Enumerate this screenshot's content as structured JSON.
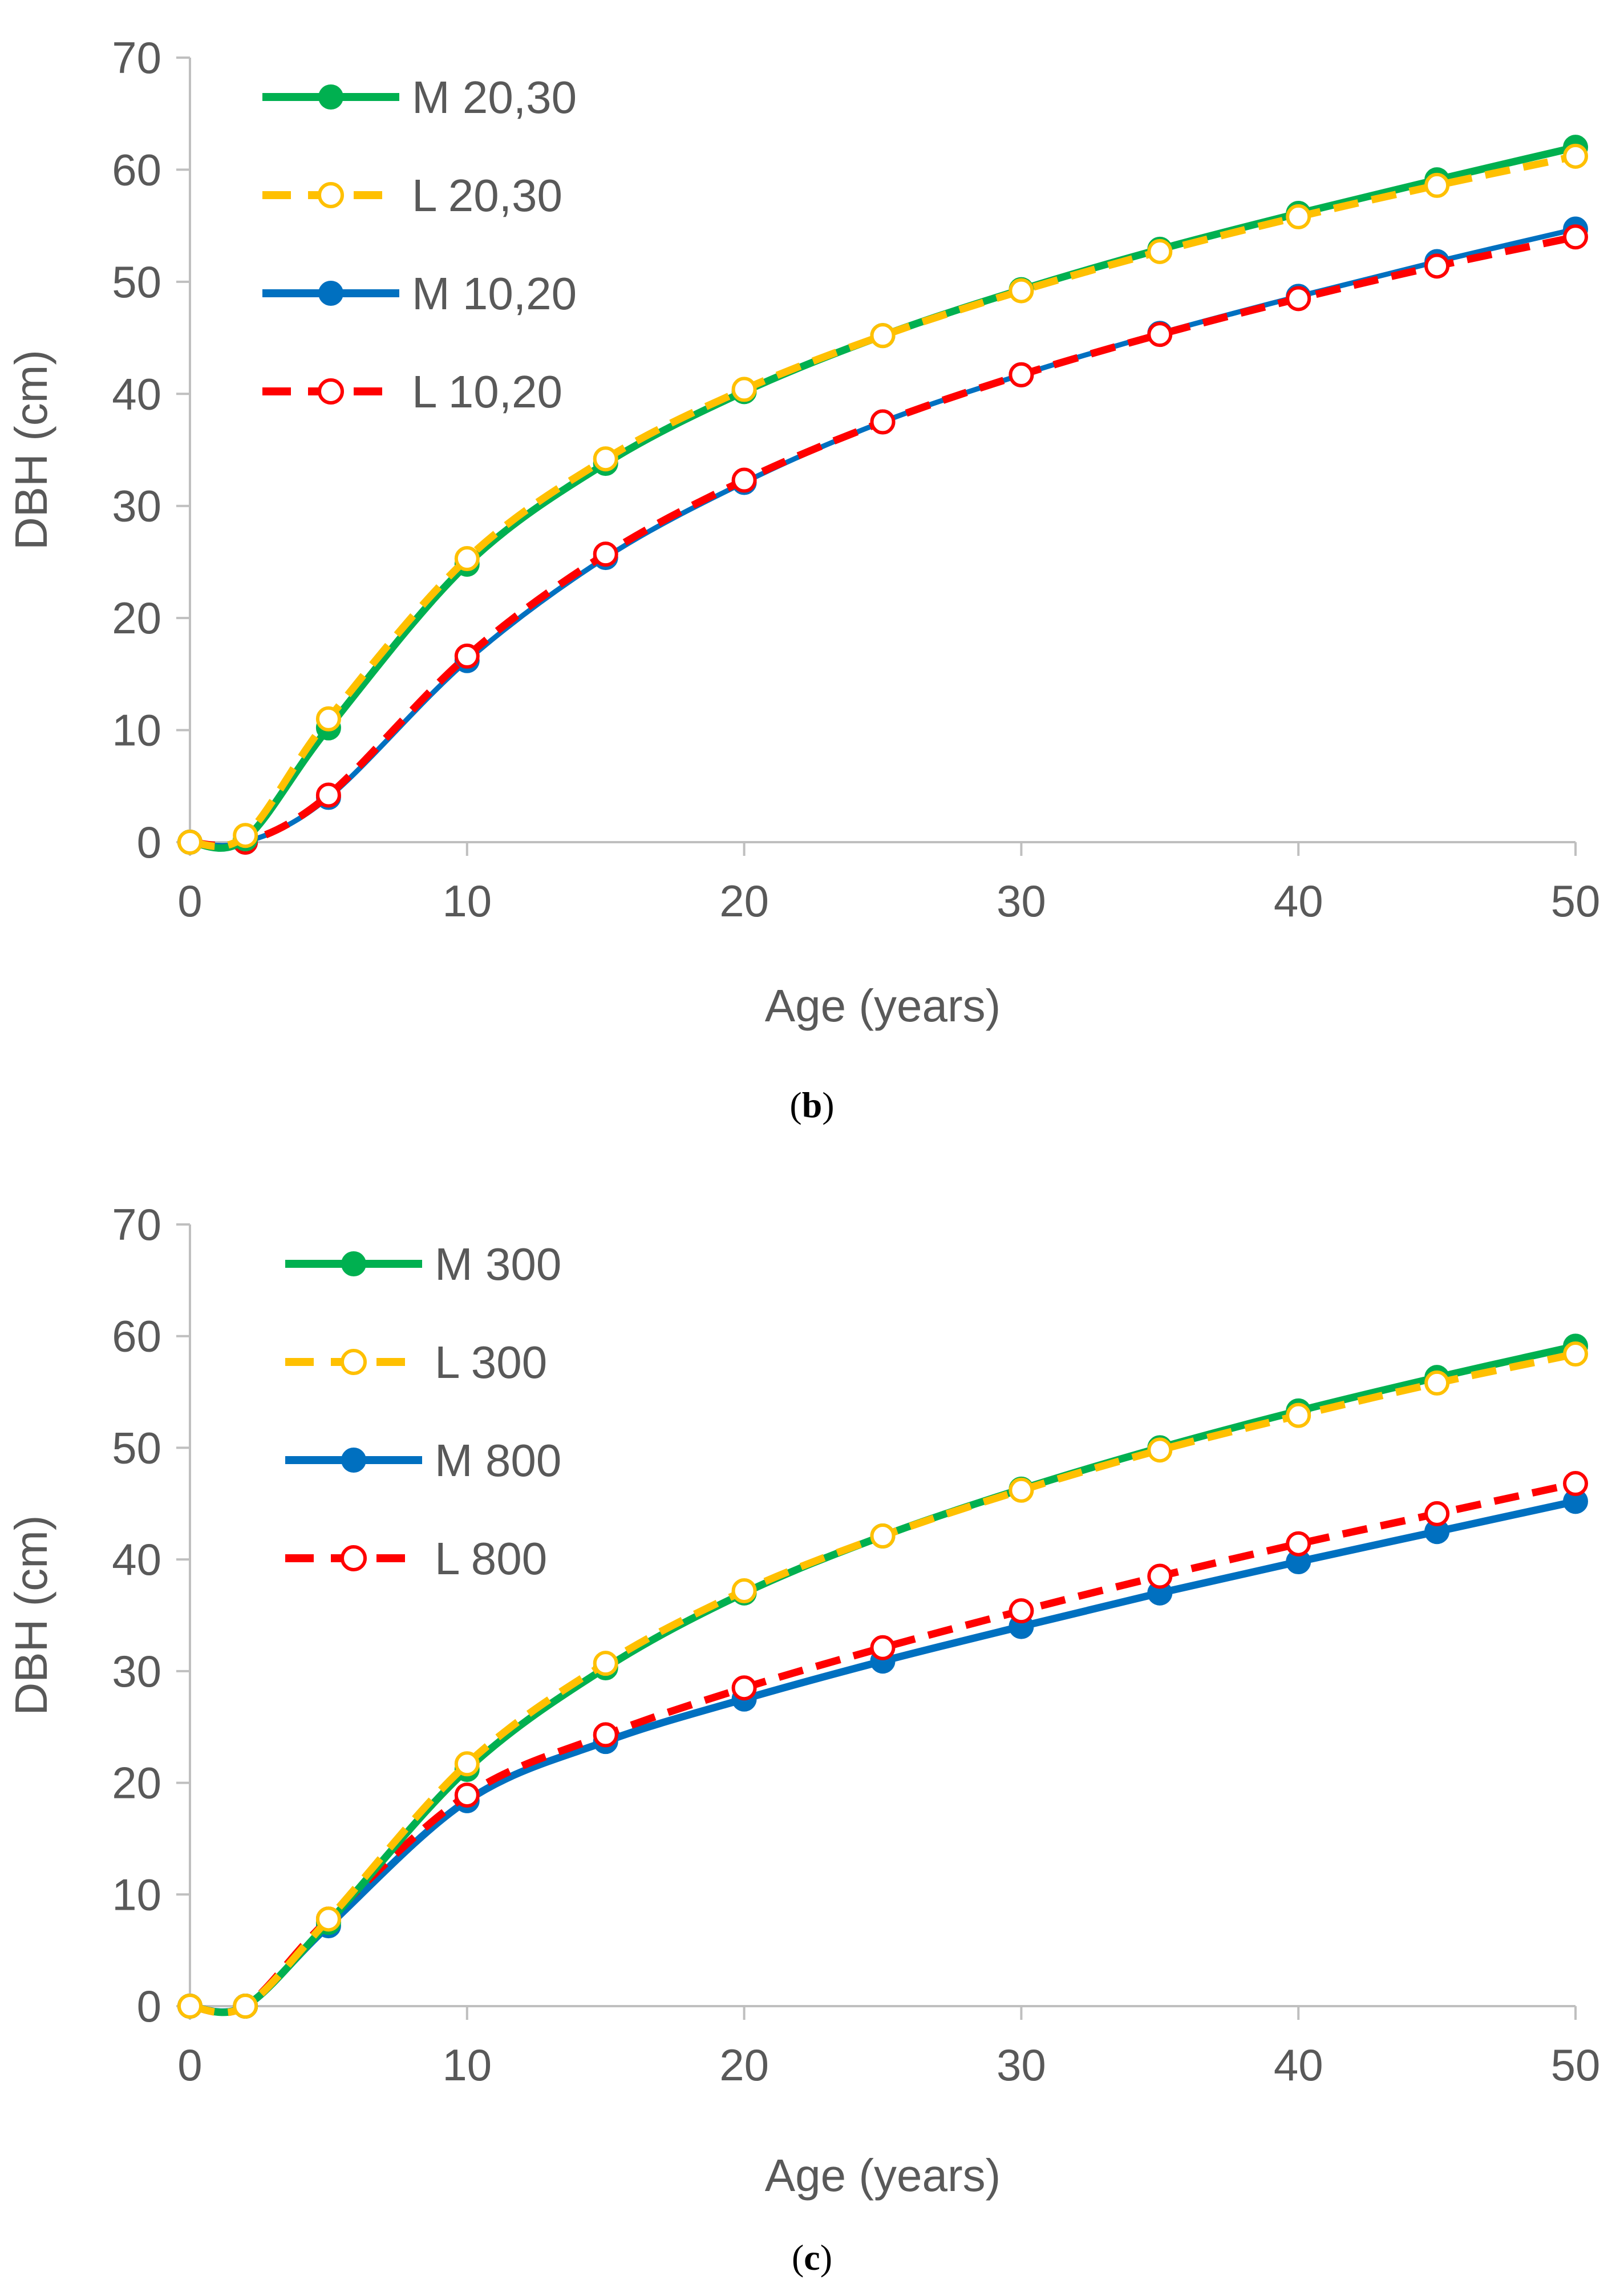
{
  "chart_data": [
    {
      "type": "line",
      "panel": "b",
      "xlabel": "Age (years)",
      "ylabel": "DBH (cm)",
      "xlim": [
        0,
        50
      ],
      "ylim": [
        0,
        70
      ],
      "xticks": [
        0,
        10,
        20,
        30,
        40,
        50
      ],
      "yticks": [
        0,
        10,
        20,
        30,
        40,
        50,
        60,
        70
      ],
      "legend_position": "top-left",
      "grid": false,
      "x": [
        0,
        2,
        5,
        10,
        15,
        20,
        25,
        30,
        35,
        40,
        45,
        50
      ],
      "series": [
        {
          "name": "M 20,30",
          "color": "#00B050",
          "style": "solid",
          "marker": "filled",
          "values": [
            0,
            0.3,
            10.2,
            24.8,
            33.8,
            40.2,
            45.2,
            49.3,
            52.9,
            56.1,
            59.1,
            62.0
          ]
        },
        {
          "name": "L 20,30",
          "color": "#FFC000",
          "style": "dashed",
          "marker": "open",
          "values": [
            0,
            0.6,
            11.0,
            25.3,
            34.2,
            40.4,
            45.2,
            49.2,
            52.7,
            55.8,
            58.6,
            61.2
          ]
        },
        {
          "name": "M 10,20",
          "color": "#0070C0",
          "style": "solid",
          "marker": "filled",
          "values": [
            0,
            0,
            4.0,
            16.2,
            25.4,
            32.1,
            37.5,
            41.7,
            45.4,
            48.7,
            51.8,
            54.7
          ]
        },
        {
          "name": "L 10,20",
          "color": "#FF0000",
          "style": "dashed",
          "marker": "open",
          "values": [
            0,
            0,
            4.2,
            16.6,
            25.7,
            32.3,
            37.5,
            41.7,
            45.3,
            48.5,
            51.4,
            54.0
          ]
        }
      ],
      "caption": "b"
    },
    {
      "type": "line",
      "panel": "c",
      "xlabel": "Age (years)",
      "ylabel": "DBH (cm)",
      "xlim": [
        0,
        50
      ],
      "ylim": [
        0,
        70
      ],
      "xticks": [
        0,
        10,
        20,
        30,
        40,
        50
      ],
      "yticks": [
        0,
        10,
        20,
        30,
        40,
        50,
        60,
        70
      ],
      "legend_position": "top-left",
      "grid": false,
      "x": [
        0,
        2,
        5,
        10,
        15,
        20,
        25,
        30,
        35,
        40,
        45,
        50
      ],
      "series": [
        {
          "name": "M 300",
          "color": "#00B050",
          "style": "solid",
          "marker": "filled",
          "values": [
            0,
            0,
            7.5,
            21.2,
            30.3,
            37.0,
            42.1,
            46.3,
            50.0,
            53.3,
            56.3,
            59.1
          ]
        },
        {
          "name": "L 300",
          "color": "#FFC000",
          "style": "dashed",
          "marker": "open",
          "values": [
            0,
            0,
            7.8,
            21.7,
            30.7,
            37.2,
            42.1,
            46.2,
            49.8,
            52.9,
            55.8,
            58.4
          ]
        },
        {
          "name": "M 800",
          "color": "#0070C0",
          "style": "solid",
          "marker": "filled",
          "values": [
            0,
            0,
            7.2,
            18.4,
            23.7,
            27.5,
            30.9,
            34.0,
            37.0,
            39.8,
            42.5,
            45.2
          ]
        },
        {
          "name": "L 800",
          "color": "#FF0000",
          "style": "dashed",
          "marker": "open",
          "values": [
            0,
            0,
            7.8,
            18.9,
            24.3,
            28.5,
            32.1,
            35.4,
            38.5,
            41.4,
            44.1,
            46.8
          ]
        }
      ],
      "caption": "c"
    }
  ]
}
